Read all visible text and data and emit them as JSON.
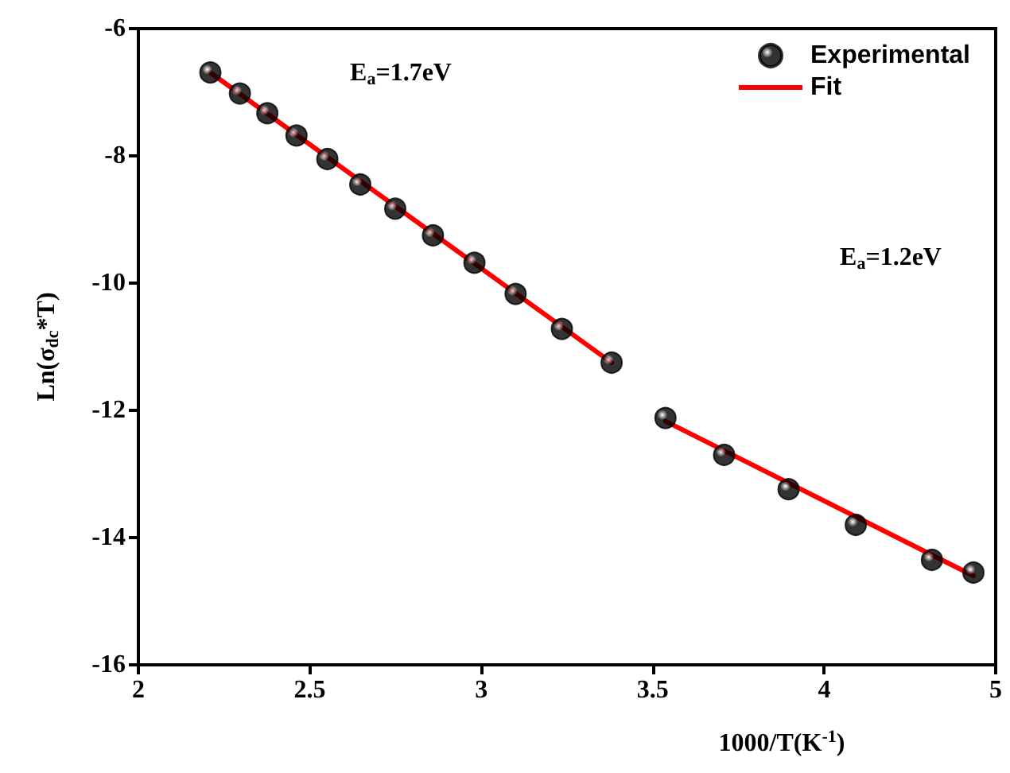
{
  "chart_data": {
    "type": "scatter",
    "xlabel": "1000/T(K$^{-1}$)",
    "ylabel": "Ln(σ$_{dc}$*T)",
    "xlim": [
      2,
      4.5
    ],
    "xticks": [
      2,
      2.5,
      3,
      3.5,
      4,
      {
        "value": 4.5,
        "label": "5"
      }
    ],
    "ylim": [
      -16,
      -6
    ],
    "yticks": [
      -16,
      -14,
      -12,
      -10,
      -8,
      -6
    ],
    "grid": false,
    "legend": "top right",
    "series": [
      {
        "name": "Experimental",
        "marker": "circle",
        "color": "#000000",
        "x": [
          2.21,
          2.296,
          2.376,
          2.461,
          2.551,
          2.647,
          2.749,
          2.859,
          2.98,
          3.1,
          3.235,
          3.38,
          3.537,
          3.708,
          3.896,
          4.092,
          4.314,
          4.435
        ],
        "values": [
          -6.69,
          -7.02,
          -7.33,
          -7.68,
          -8.05,
          -8.45,
          -8.83,
          -9.25,
          -9.68,
          -10.17,
          -10.72,
          -11.25,
          -12.12,
          -12.7,
          -13.24,
          -13.8,
          -14.35,
          -14.55
        ]
      },
      {
        "name": "Fit",
        "type": "line",
        "marker": "none",
        "color": "#ff0000",
        "x": [
          2.21,
          3.38
        ],
        "values": [
          -6.69,
          -11.25
        ]
      },
      {
        "type": "line",
        "marker": "none",
        "color": "#ff0000",
        "x": [
          3.537,
          4.435
        ],
        "values": [
          -12.17,
          -14.6
        ]
      }
    ],
    "annotations": [
      "E$_{a}$=1.7eV",
      "E$_{a}$=1.2eV"
    ]
  }
}
